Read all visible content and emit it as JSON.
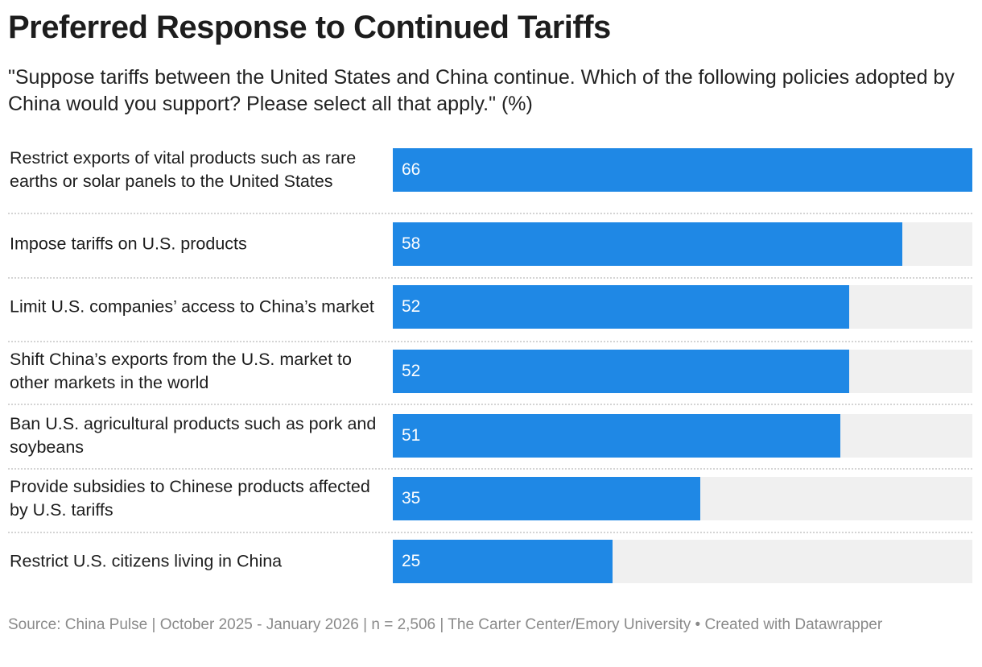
{
  "chart_data": {
    "type": "bar",
    "title": "Preferred Response to Continued Tariffs",
    "subtitle": "\"Suppose tariffs between the United States and China continue. Which of the following policies adopted by China would you support? Please select all that apply.\" (%)",
    "categories": [
      "Restrict exports of vital products such as rare earths or solar panels to the United States",
      "Impose tariffs on U.S. products",
      "Limit U.S. companies’ access to China’s market",
      "Shift China’s exports from the U.S. market to other markets in the world",
      "Ban U.S. agricultural products such as pork and soybeans",
      "Provide subsidies to Chinese products affected by U.S. tariffs",
      "Restrict U.S. citizens living in China"
    ],
    "values": [
      66,
      58,
      52,
      52,
      51,
      35,
      25
    ],
    "color": "#1f88e5",
    "source": "Source: China Pulse | October 2025 - January 2026 | n = 2,506 | The Carter Center/Emory University • Created with Datawrapper"
  }
}
